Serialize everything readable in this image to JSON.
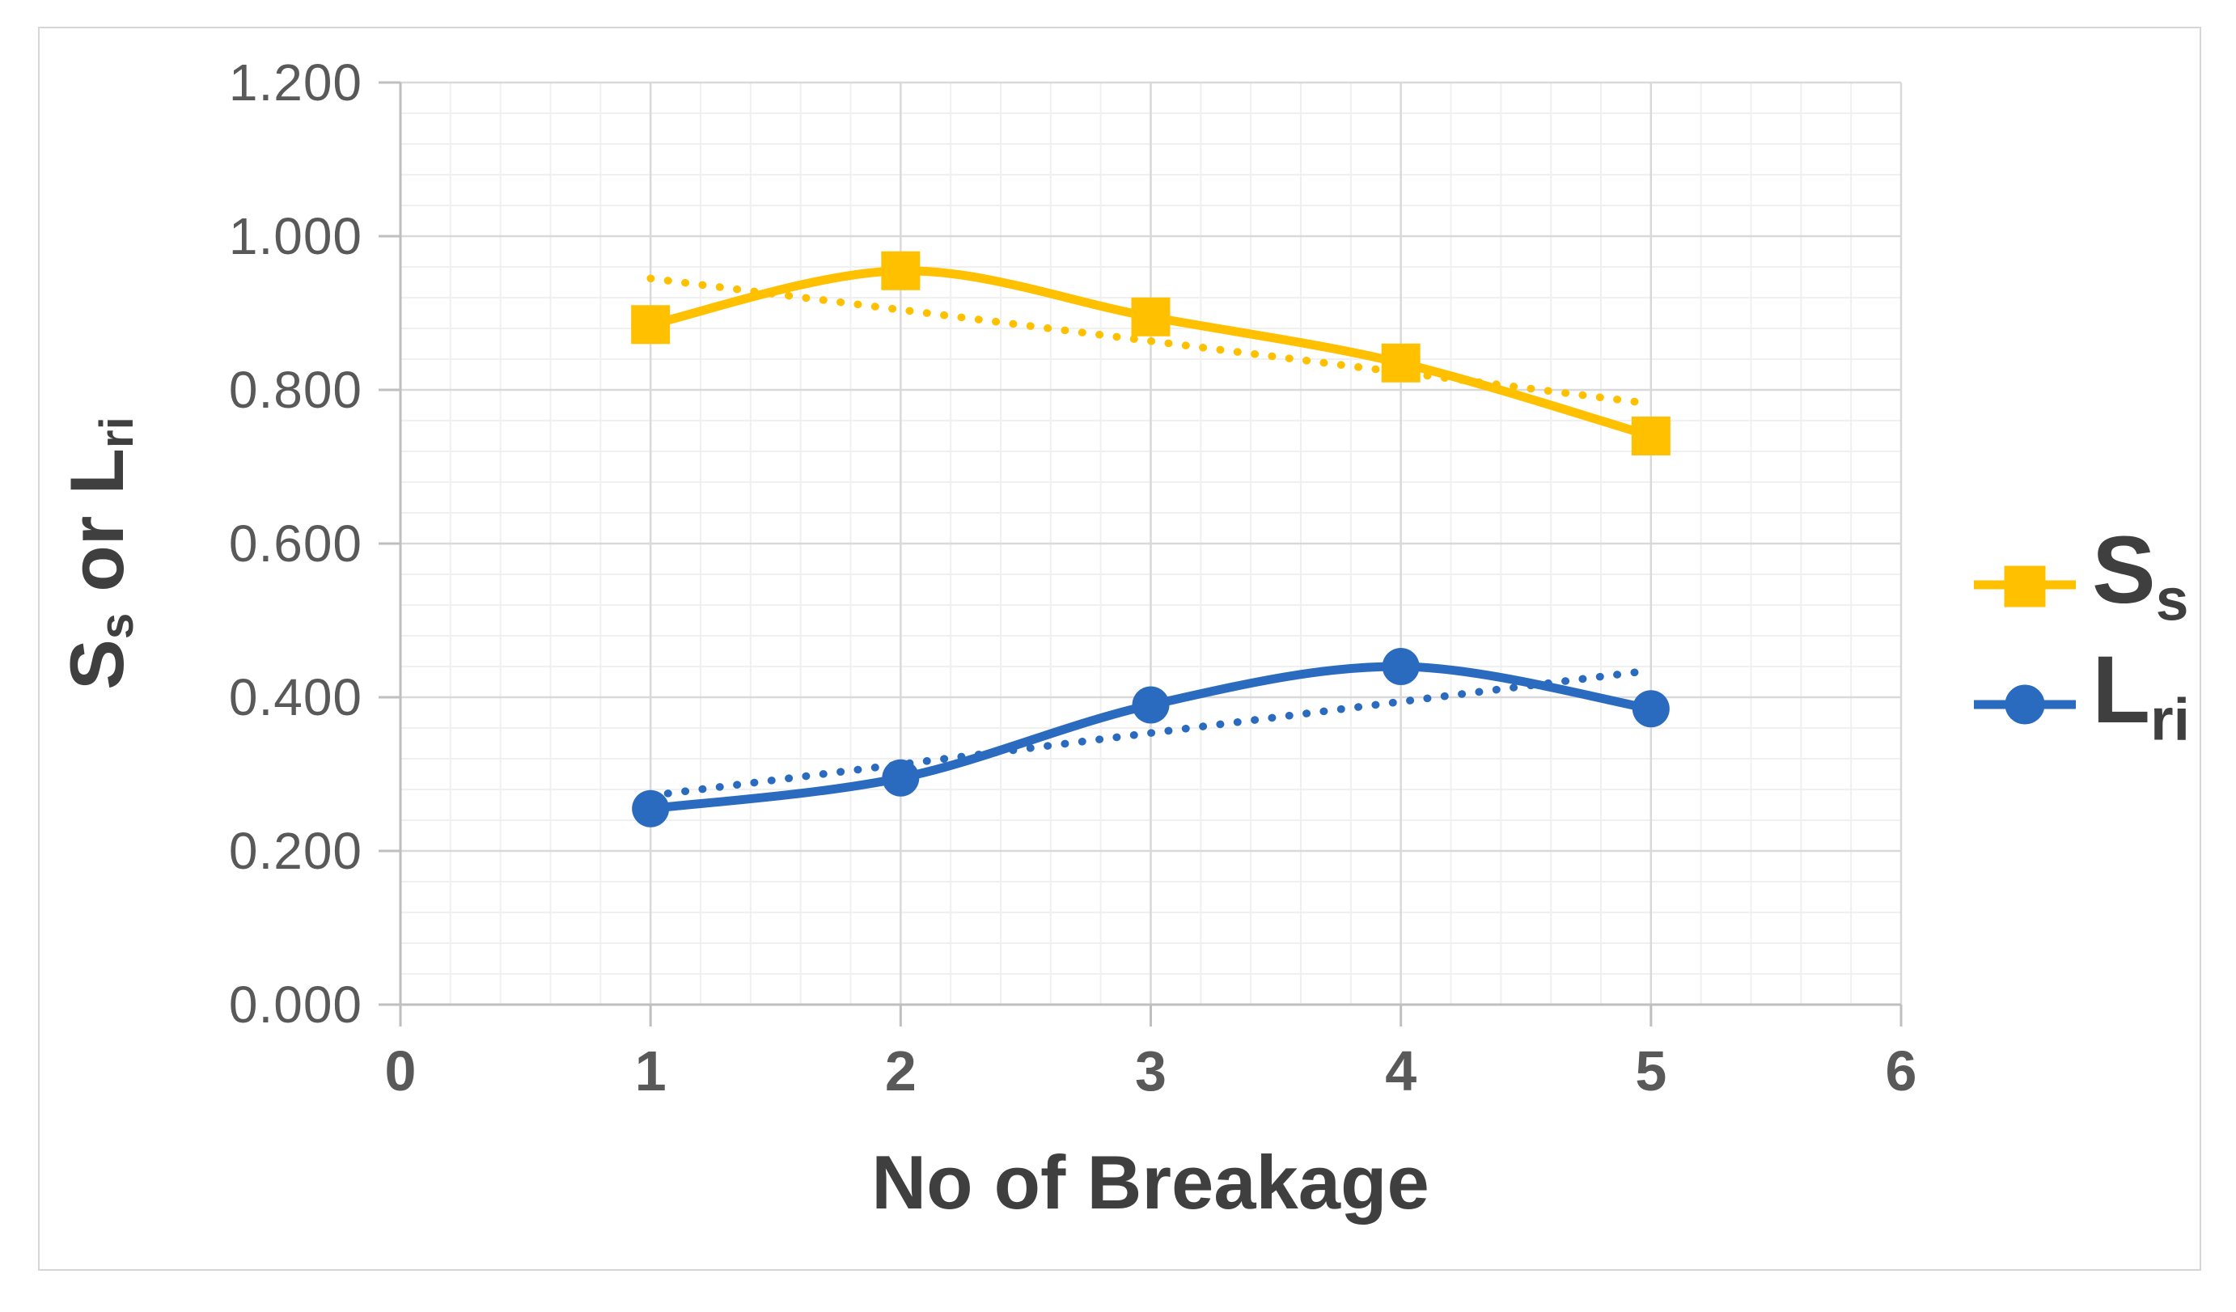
{
  "chart_data": {
    "type": "line",
    "title": "",
    "xlabel": "No of Breakage",
    "ylabel_plain": "Ss or Lri",
    "ylabel_segments": [
      {
        "t": "S"
      },
      {
        "s": "s"
      },
      {
        "t": " or L"
      },
      {
        "s": "ri"
      }
    ],
    "x": [
      1,
      2,
      3,
      4,
      5
    ],
    "series": [
      {
        "name_plain": "Ss",
        "name_segments": [
          {
            "t": "S"
          },
          {
            "s": "s"
          }
        ],
        "values": [
          0.885,
          0.955,
          0.895,
          0.835,
          0.74
        ],
        "color": "#FFC000",
        "marker": "square",
        "line_style": "solid-smooth"
      },
      {
        "name_plain": "Lri",
        "name_segments": [
          {
            "t": "L"
          },
          {
            "s": "ri"
          }
        ],
        "values": [
          0.255,
          0.295,
          0.39,
          0.44,
          0.385
        ],
        "color": "#2A6BBF",
        "marker": "circle",
        "line_style": "solid-smooth"
      }
    ],
    "trendlines": [
      {
        "series": "Ss",
        "style": "dotted",
        "color": "#FFC000",
        "points": [
          [
            1,
            0.945
          ],
          [
            5,
            0.782
          ]
        ]
      },
      {
        "series": "Lri",
        "style": "dotted",
        "color": "#2A6BBF",
        "points": [
          [
            1,
            0.272
          ],
          [
            5,
            0.435
          ]
        ]
      }
    ],
    "x_ticks": {
      "values": [
        0,
        1,
        2,
        3,
        4,
        5,
        6
      ],
      "labels": [
        "0",
        "1",
        "2",
        "3",
        "4",
        "5",
        "6"
      ]
    },
    "y_ticks": {
      "values": [
        0,
        0.2,
        0.4,
        0.6,
        0.8,
        1.0,
        1.2
      ],
      "labels": [
        "0.000",
        "0.200",
        "0.400",
        "0.600",
        "0.800",
        "1.000",
        "1.200"
      ]
    },
    "xlim": [
      0,
      6
    ],
    "ylim": [
      0,
      1.2
    ],
    "grid": {
      "major": true,
      "minor": true,
      "minor_x_step": 0.2,
      "minor_y_step": 0.04
    },
    "legend_position": "right"
  },
  "colors": {
    "series_ss": "#FFC000",
    "series_lri": "#2A6BBF",
    "tick_label": "#595959",
    "axis_title": "#3f3f3f",
    "major_grid": "#d9d9d9",
    "minor_grid": "#f0f0f0",
    "axis_line": "#bfbfbf",
    "frame_border": "#d6d6d6",
    "background": "#ffffff"
  }
}
